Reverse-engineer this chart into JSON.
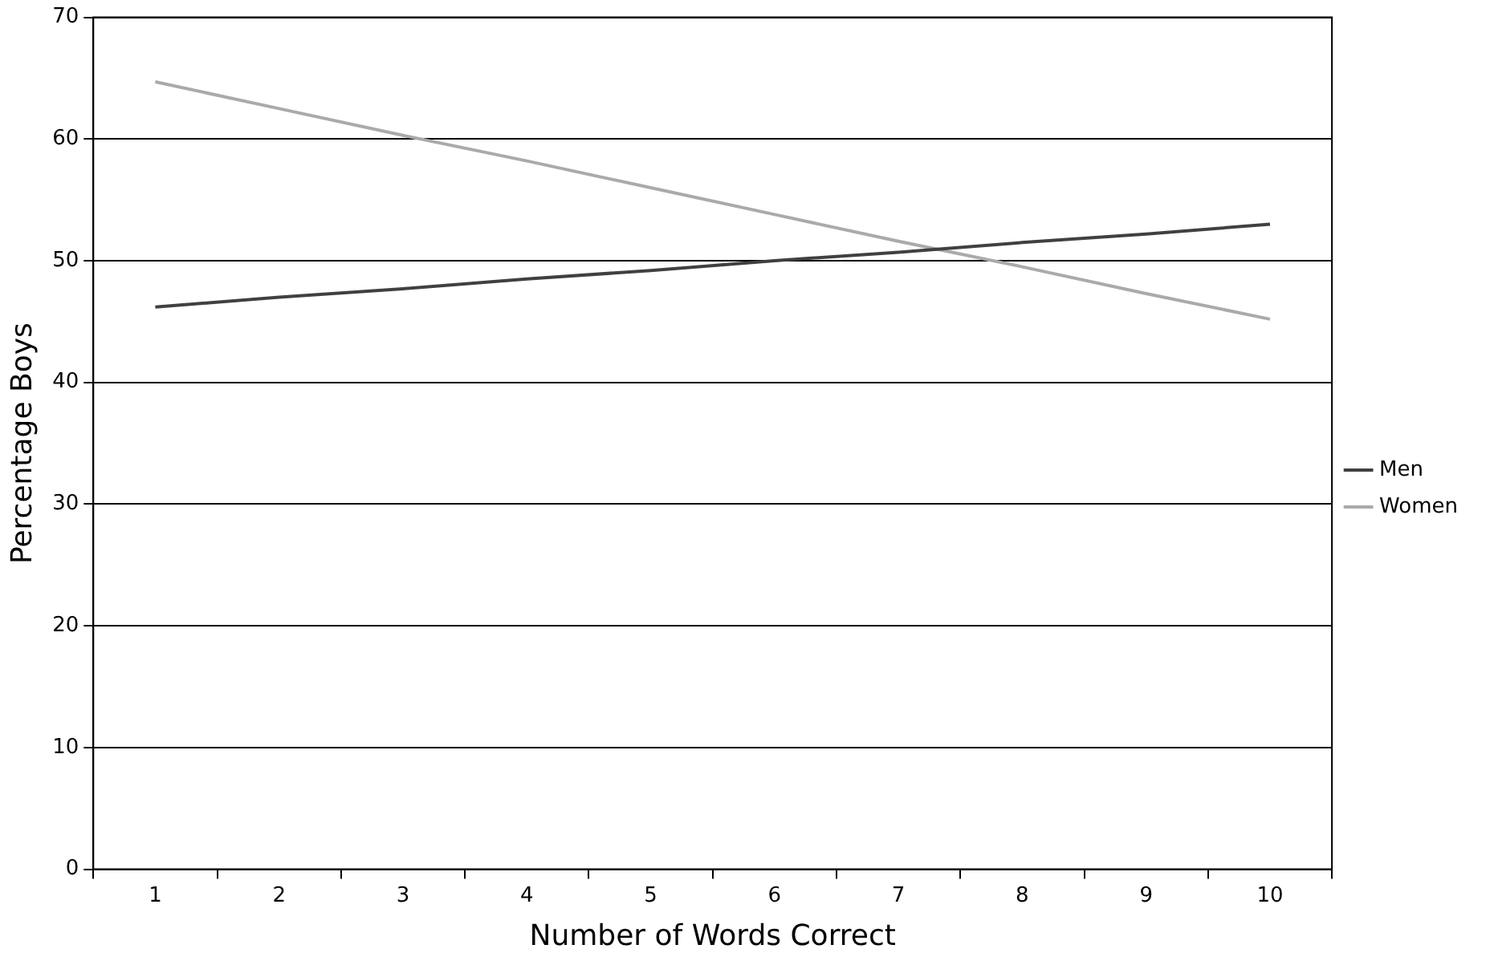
{
  "chart_data": {
    "type": "line",
    "xlabel": "Number of Words Correct",
    "ylabel": "Percentage Boys",
    "categories": [
      "1",
      "2",
      "3",
      "4",
      "5",
      "6",
      "7",
      "8",
      "9",
      "10"
    ],
    "series": [
      {
        "name": "Men",
        "color": "#404040",
        "values": [
          46.2,
          47.0,
          47.7,
          48.5,
          49.2,
          50.0,
          50.7,
          51.5,
          52.2,
          53.0
        ]
      },
      {
        "name": "Women",
        "color": "#aaaaaa",
        "values": [
          64.7,
          62.5,
          60.3,
          58.2,
          56.0,
          53.8,
          51.6,
          49.5,
          47.3,
          45.2
        ]
      }
    ],
    "ylim": [
      0,
      70
    ],
    "yticks": [
      0,
      10,
      20,
      30,
      40,
      50,
      60,
      70
    ],
    "grid": "y",
    "legend": "right",
    "marker": "none",
    "line_style": "solid"
  }
}
